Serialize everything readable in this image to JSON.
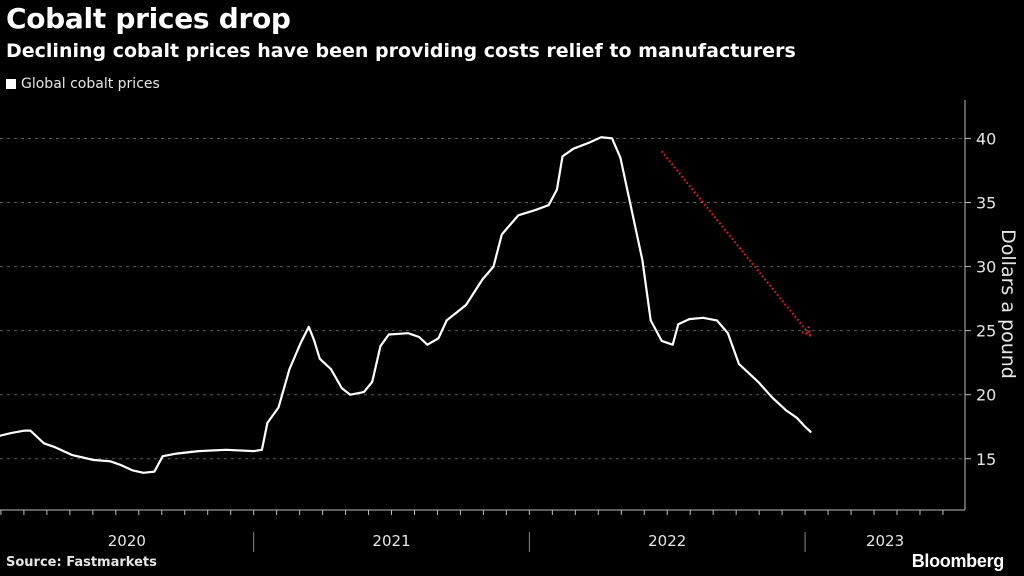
{
  "chart_data": {
    "type": "line",
    "title": "Cobalt prices drop",
    "subtitle": "Declining cobalt prices have been providing costs relief to manufacturers",
    "ylabel": "Dollars a pound",
    "xlabel": "",
    "ylim": [
      11,
      43
    ],
    "xlim": [
      2019.58,
      2023.08
    ],
    "yticks": [
      15,
      20,
      25,
      30,
      35,
      40
    ],
    "ytick_labels": [
      "15",
      "20",
      "25",
      "30",
      "35",
      "40"
    ],
    "x_category_labels": [
      {
        "label": "2020",
        "start": 2019.58,
        "end": 2020.5
      },
      {
        "label": "2021",
        "start": 2020.5,
        "end": 2021.5
      },
      {
        "label": "2022",
        "start": 2021.5,
        "end": 2022.5
      },
      {
        "label": "2023",
        "start": 2022.5,
        "end": 2023.08
      }
    ],
    "legend": [
      "Global cobalt prices"
    ],
    "series": [
      {
        "name": "Global cobalt prices",
        "color": "#ffffff",
        "points": [
          [
            2019.58,
            16.8
          ],
          [
            2019.62,
            17.0
          ],
          [
            2019.67,
            17.2
          ],
          [
            2019.69,
            17.2
          ],
          [
            2019.71,
            16.8
          ],
          [
            2019.74,
            16.2
          ],
          [
            2019.78,
            15.9
          ],
          [
            2019.84,
            15.3
          ],
          [
            2019.92,
            14.9
          ],
          [
            2019.98,
            14.8
          ],
          [
            2020.02,
            14.5
          ],
          [
            2020.06,
            14.1
          ],
          [
            2020.1,
            13.9
          ],
          [
            2020.14,
            14.0
          ],
          [
            2020.17,
            15.2
          ],
          [
            2020.22,
            15.4
          ],
          [
            2020.3,
            15.6
          ],
          [
            2020.4,
            15.7
          ],
          [
            2020.5,
            15.6
          ],
          [
            2020.53,
            15.7
          ],
          [
            2020.55,
            17.8
          ],
          [
            2020.59,
            19.0
          ],
          [
            2020.63,
            22.0
          ],
          [
            2020.67,
            24.0
          ],
          [
            2020.7,
            25.3
          ],
          [
            2020.72,
            24.2
          ],
          [
            2020.74,
            22.8
          ],
          [
            2020.78,
            22.0
          ],
          [
            2020.82,
            20.5
          ],
          [
            2020.85,
            20.0
          ],
          [
            2020.9,
            20.2
          ],
          [
            2020.93,
            21.0
          ],
          [
            2020.96,
            23.8
          ],
          [
            2020.99,
            24.7
          ],
          [
            2021.06,
            24.8
          ],
          [
            2021.1,
            24.5
          ],
          [
            2021.13,
            23.9
          ],
          [
            2021.17,
            24.4
          ],
          [
            2021.2,
            25.8
          ],
          [
            2021.27,
            27.0
          ],
          [
            2021.33,
            29.0
          ],
          [
            2021.37,
            30.0
          ],
          [
            2021.4,
            32.5
          ],
          [
            2021.46,
            34.0
          ],
          [
            2021.52,
            34.4
          ],
          [
            2021.57,
            34.8
          ],
          [
            2021.6,
            36.0
          ],
          [
            2021.62,
            38.6
          ],
          [
            2021.66,
            39.2
          ],
          [
            2021.72,
            39.7
          ],
          [
            2021.76,
            40.1
          ],
          [
            2021.8,
            40.0
          ],
          [
            2021.83,
            38.5
          ],
          [
            2021.87,
            34.5
          ],
          [
            2021.91,
            30.5
          ],
          [
            2021.94,
            25.8
          ],
          [
            2021.98,
            24.2
          ],
          [
            2022.02,
            23.9
          ],
          [
            2022.04,
            25.5
          ],
          [
            2022.08,
            25.9
          ],
          [
            2022.13,
            26.0
          ],
          [
            2022.18,
            25.8
          ],
          [
            2022.22,
            24.8
          ],
          [
            2022.26,
            22.4
          ],
          [
            2022.33,
            21.0
          ],
          [
            2022.38,
            19.8
          ],
          [
            2022.43,
            18.8
          ],
          [
            2022.47,
            18.2
          ],
          [
            2022.5,
            17.5
          ],
          [
            2022.52,
            17.1
          ]
        ]
      }
    ],
    "annotations": [
      {
        "type": "arrow",
        "style": "dotted",
        "color": "#e8202a",
        "from": [
          2021.98,
          39.0
        ],
        "to": [
          2022.52,
          24.6
        ]
      }
    ]
  },
  "source": "Source: Fastmarkets",
  "brand": "Bloomberg"
}
